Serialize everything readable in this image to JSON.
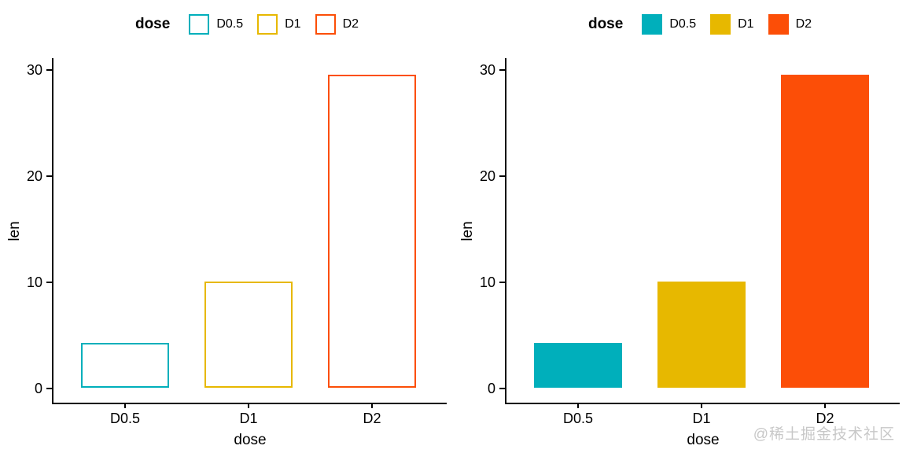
{
  "watermark": {
    "text": "@稀土掘金技术社区",
    "color": "#c8c8c8"
  },
  "chart_data": [
    {
      "type": "bar",
      "variant": "outline",
      "xlabel": "dose",
      "ylabel": "len",
      "categories": [
        "D0.5",
        "D1",
        "D2"
      ],
      "values": [
        4.2,
        10,
        29.5
      ],
      "series_colors": [
        "#00AFBB",
        "#E7B800",
        "#FC4E07"
      ],
      "yticks": [
        0,
        10,
        20,
        30
      ],
      "ylim": [
        0,
        31
      ],
      "grid": false,
      "legend": {
        "title": "dose",
        "position": "top",
        "entries": [
          "D0.5",
          "D1",
          "D2"
        ]
      }
    },
    {
      "type": "bar",
      "variant": "filled",
      "xlabel": "dose",
      "ylabel": "len",
      "categories": [
        "D0.5",
        "D1",
        "D2"
      ],
      "values": [
        4.2,
        10,
        29.5
      ],
      "series_colors": [
        "#00AFBB",
        "#E7B800",
        "#FC4E07"
      ],
      "yticks": [
        0,
        10,
        20,
        30
      ],
      "ylim": [
        0,
        31
      ],
      "grid": false,
      "legend": {
        "title": "dose",
        "position": "top",
        "entries": [
          "D0.5",
          "D1",
          "D2"
        ]
      }
    }
  ]
}
